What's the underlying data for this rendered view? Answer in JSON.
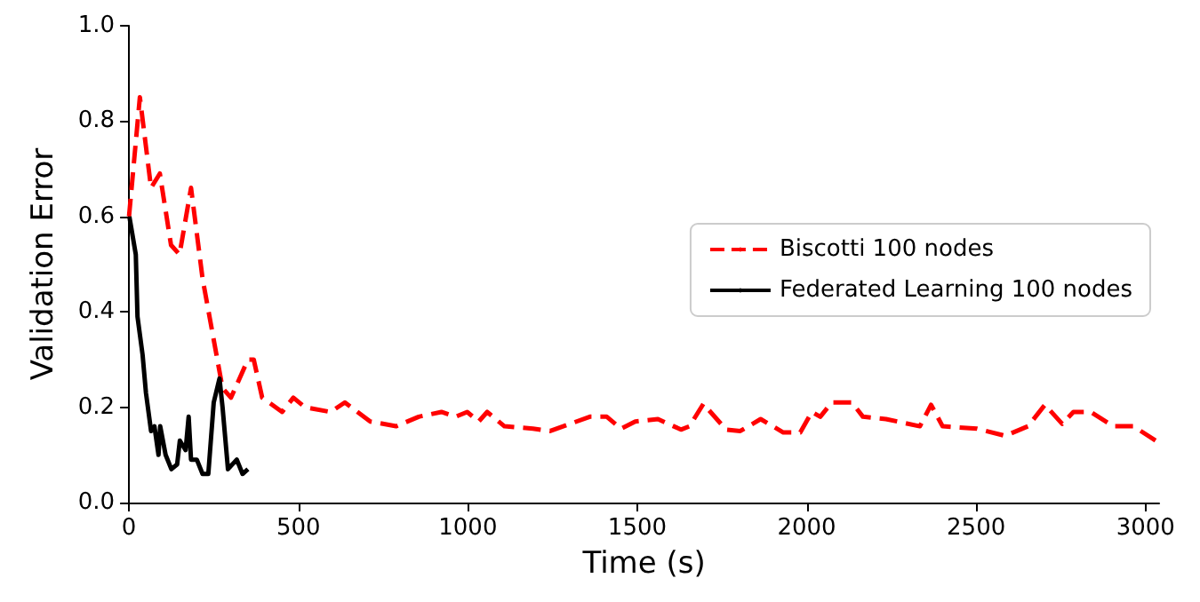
{
  "chart_data": {
    "type": "line",
    "xlabel": "Time (s)",
    "ylabel": "Validation Error",
    "xlim": [
      0,
      3040
    ],
    "xticks": [
      0,
      500,
      1000,
      1500,
      2000,
      2500,
      3000
    ],
    "ylim": [
      0,
      1.0
    ],
    "yticks": [
      {
        "value": 0,
        "label": "0.0"
      },
      {
        "value": 0.2,
        "label": "0.2"
      },
      {
        "value": 0.4,
        "label": "0.4"
      },
      {
        "value": 0.6,
        "label": "0.6"
      },
      {
        "value": 0.8,
        "label": "0.8"
      },
      {
        "value": 1.0,
        "label": "1.0"
      }
    ],
    "grid": false,
    "legend": "right",
    "marker": "none",
    "series": [
      {
        "name": "Biscotti 100 nodes",
        "color": "#ff0000",
        "line_style": "dashed",
        "x": [
          0,
          32,
          65,
          91,
          124,
          149,
          183,
          217,
          276,
          301,
          351,
          368,
          393,
          452,
          485,
          519,
          595,
          637,
          712,
          788,
          855,
          922,
          964,
          998,
          1032,
          1057,
          1108,
          1192,
          1243,
          1360,
          1410,
          1452,
          1494,
          1561,
          1629,
          1654,
          1695,
          1762,
          1804,
          1864,
          1931,
          1981,
          2015,
          2040,
          2074,
          2133,
          2166,
          2234,
          2334,
          2367,
          2401,
          2502,
          2586,
          2653,
          2703,
          2754,
          2787,
          2838,
          2905,
          2964,
          3030
        ],
        "values": [
          0.6,
          0.85,
          0.66,
          0.69,
          0.54,
          0.52,
          0.66,
          0.47,
          0.24,
          0.22,
          0.3,
          0.3,
          0.22,
          0.19,
          0.22,
          0.2,
          0.19,
          0.21,
          0.17,
          0.16,
          0.18,
          0.19,
          0.18,
          0.19,
          0.17,
          0.19,
          0.16,
          0.155,
          0.15,
          0.18,
          0.18,
          0.155,
          0.17,
          0.175,
          0.153,
          0.16,
          0.207,
          0.153,
          0.15,
          0.175,
          0.147,
          0.147,
          0.19,
          0.18,
          0.21,
          0.21,
          0.18,
          0.175,
          0.16,
          0.205,
          0.16,
          0.155,
          0.14,
          0.16,
          0.205,
          0.165,
          0.19,
          0.19,
          0.16,
          0.16,
          0.13
        ]
      },
      {
        "name": "Federated Learning 100 nodes",
        "color": "#000000",
        "line_style": "solid",
        "x": [
          1,
          20,
          25,
          40,
          50,
          65,
          75,
          87,
          92,
          108,
          125,
          142,
          150,
          167,
          176,
          183,
          200,
          217,
          234,
          250,
          267,
          276,
          292,
          318,
          335,
          351
        ],
        "values": [
          0.6,
          0.52,
          0.39,
          0.31,
          0.23,
          0.15,
          0.16,
          0.1,
          0.16,
          0.1,
          0.07,
          0.08,
          0.13,
          0.11,
          0.18,
          0.09,
          0.09,
          0.06,
          0.06,
          0.21,
          0.26,
          0.2,
          0.07,
          0.09,
          0.06,
          0.07
        ]
      }
    ]
  }
}
